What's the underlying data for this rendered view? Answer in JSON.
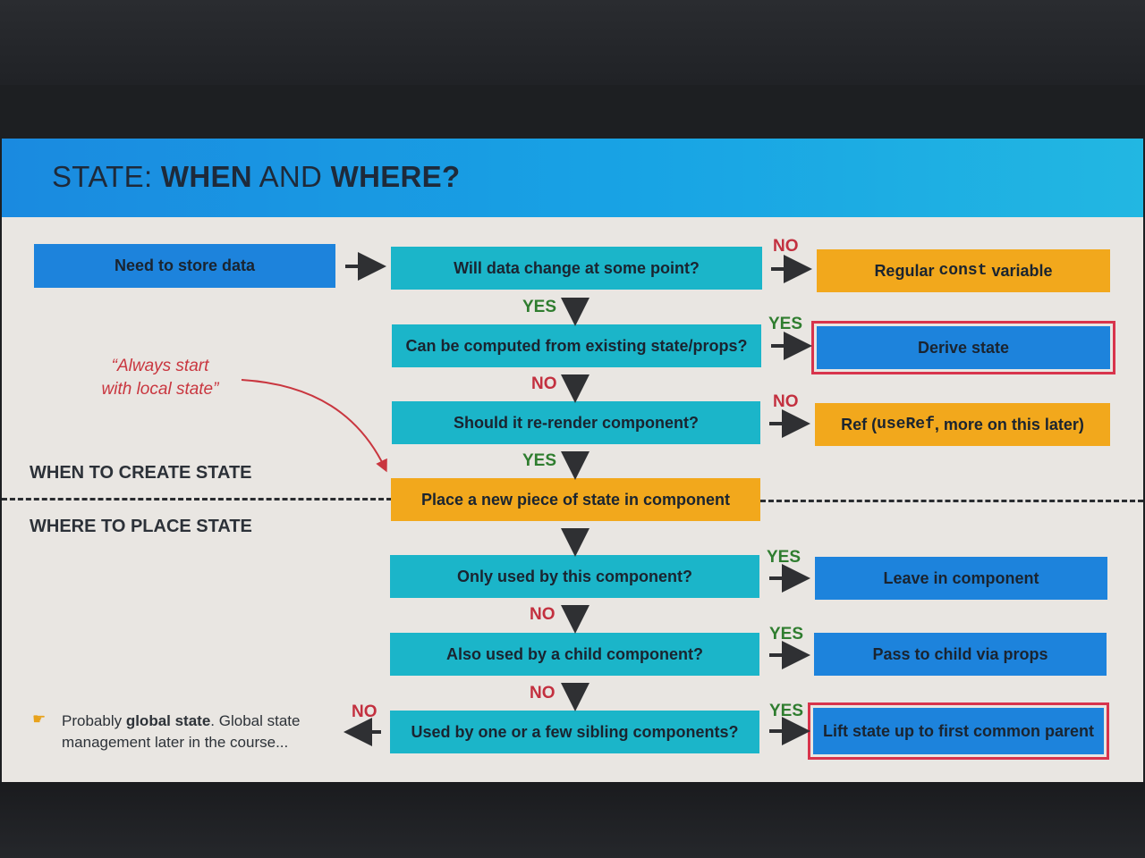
{
  "title": {
    "prefix": "STATE: ",
    "bold1": "WHEN",
    "mid": " AND ",
    "bold2": "WHERE?"
  },
  "sections": {
    "create": "WHEN TO CREATE STATE",
    "place": "WHERE TO PLACE STATE"
  },
  "quote": {
    "line1": "“Always start",
    "line2": "with local state”"
  },
  "boxes": {
    "start": "Need to store data",
    "q_change": "Will data change at some point?",
    "a_const_pre": "Regular ",
    "a_const_code": "const",
    "a_const_post": " variable",
    "q_computed": "Can be computed from existing state/props?",
    "a_derive": "Derive state",
    "q_rerender": "Should it re-render component?",
    "a_ref_pre": "Ref (",
    "a_ref_code": "useRef",
    "a_ref_post": ", more on this later)",
    "place": "Place a new piece of state in component",
    "q_only": "Only used by this component?",
    "a_leave": "Leave in component",
    "q_child": "Also used by a child component?",
    "a_props": "Pass to child via props",
    "q_sibling": "Used by one or a few sibling components?",
    "a_lift": "Lift state up to first common parent"
  },
  "answers": {
    "yes": "YES",
    "no": "NO"
  },
  "note": {
    "bold": "global state",
    "pre": "Probably ",
    "post": ". Global state",
    "line2": "management later in the course..."
  },
  "colors": {
    "blue": "#1d83dc",
    "teal": "#1bb5c9",
    "orange": "#f2a81c",
    "yes": "#2f7d2f",
    "no": "#c3303f",
    "highlight_border": "#d8344c"
  },
  "icons": [
    "arrow-right-icon",
    "arrow-down-icon",
    "arrow-left-icon",
    "pointing-hand-icon",
    "curved-arrow-icon"
  ]
}
